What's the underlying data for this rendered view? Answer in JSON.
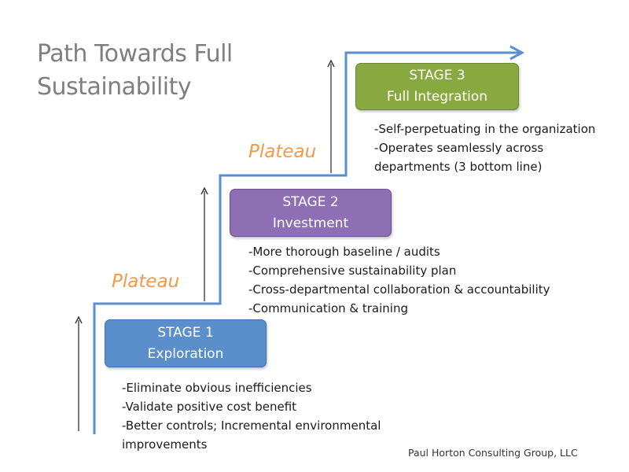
{
  "title": {
    "line1": "Path Towards Full",
    "line2": "Sustainability"
  },
  "stages": [
    {
      "name": "STAGE 1",
      "subtitle": "Exploration",
      "color": "#5a8fcc"
    },
    {
      "name": "STAGE 2",
      "subtitle": "Investment",
      "color": "#8f6fb3"
    },
    {
      "name": "STAGE 3",
      "subtitle": "Full Integration",
      "color": "#88a840"
    }
  ],
  "plateaus": [
    "Plateau",
    "Plateau"
  ],
  "bullets": {
    "stage1": [
      "-Eliminate obvious inefficiencies",
      "-Validate positive cost benefit",
      "-Better controls; Incremental environmental improvements"
    ],
    "stage2": [
      "-More thorough baseline / audits",
      "-Comprehensive sustainability plan",
      "-Cross-departmental collaboration & accountability",
      "-Communication & training"
    ],
    "stage3": [
      "-Self-perpetuating in the organization",
      "-Operates seamlessly across departments (3 bottom line)"
    ]
  },
  "credit": "Paul Horton Consulting Group, LLC",
  "colors": {
    "path_line": "#5b8fd0",
    "plateau_text": "#f29a4a",
    "title_text": "#7f7f7f",
    "arrow": "#333333"
  }
}
